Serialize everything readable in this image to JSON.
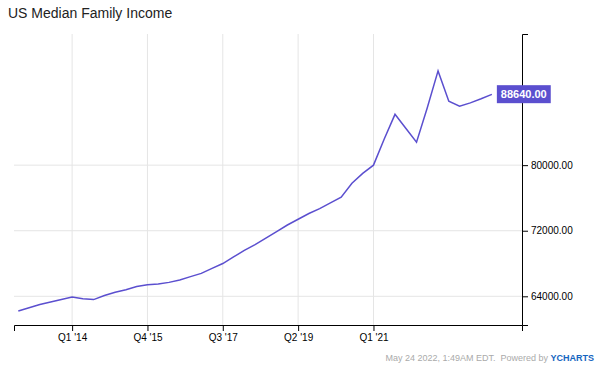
{
  "chart_data": {
    "type": "line",
    "title": "US Median Family Income",
    "x": [
      0,
      0.25,
      0.5,
      0.75,
      1.0,
      1.25,
      1.5,
      1.75,
      2.0,
      2.25,
      2.5,
      2.75,
      3.0,
      3.25,
      3.5,
      3.75,
      4.0,
      4.25,
      4.5,
      4.75,
      5.0,
      5.25,
      5.5,
      5.75,
      6.0,
      6.25,
      6.5,
      6.75,
      7.0,
      7.25,
      7.5,
      7.75,
      8.0,
      8.25,
      8.5,
      8.75,
      9.0,
      9.25,
      9.5,
      9.75,
      10.0,
      10.25,
      10.5,
      10.75,
      11.0
    ],
    "values": [
      62200,
      62600,
      63000,
      63300,
      63600,
      63900,
      63700,
      63600,
      64100,
      64500,
      64800,
      65200,
      65400,
      65500,
      65700,
      66000,
      66400,
      66800,
      67400,
      68000,
      68800,
      69600,
      70300,
      71100,
      71900,
      72700,
      73400,
      74100,
      74700,
      75400,
      76100,
      77800,
      79000,
      80000,
      83200,
      86200,
      84500,
      82800,
      87000,
      91500,
      87800,
      87200,
      87600,
      88100,
      88640
    ],
    "color": "#5b4fcf",
    "xlim": [
      -0.1,
      11.7
    ],
    "xticks": [
      {
        "value": 1.25,
        "label": "Q1 '14"
      },
      {
        "value": 3.0,
        "label": "Q4 '15"
      },
      {
        "value": 4.75,
        "label": "Q3 '17"
      },
      {
        "value": 6.5,
        "label": "Q2 '19"
      },
      {
        "value": 8.25,
        "label": "Q1 '21"
      }
    ],
    "ylim": [
      60500,
      96000
    ],
    "yticks": [
      {
        "value": 64000,
        "label": "64000.00"
      },
      {
        "value": 72000,
        "label": "72000.00"
      },
      {
        "value": 80000,
        "label": "80000.00"
      }
    ],
    "grid": true,
    "annotations": [
      {
        "text": "88640.00",
        "x": 11.0,
        "y": 88640
      },
      {
        "text": "May 24 2022, 1:49AM EDT.  Powered by "
      },
      {
        "text": "YCHARTS"
      }
    ]
  }
}
